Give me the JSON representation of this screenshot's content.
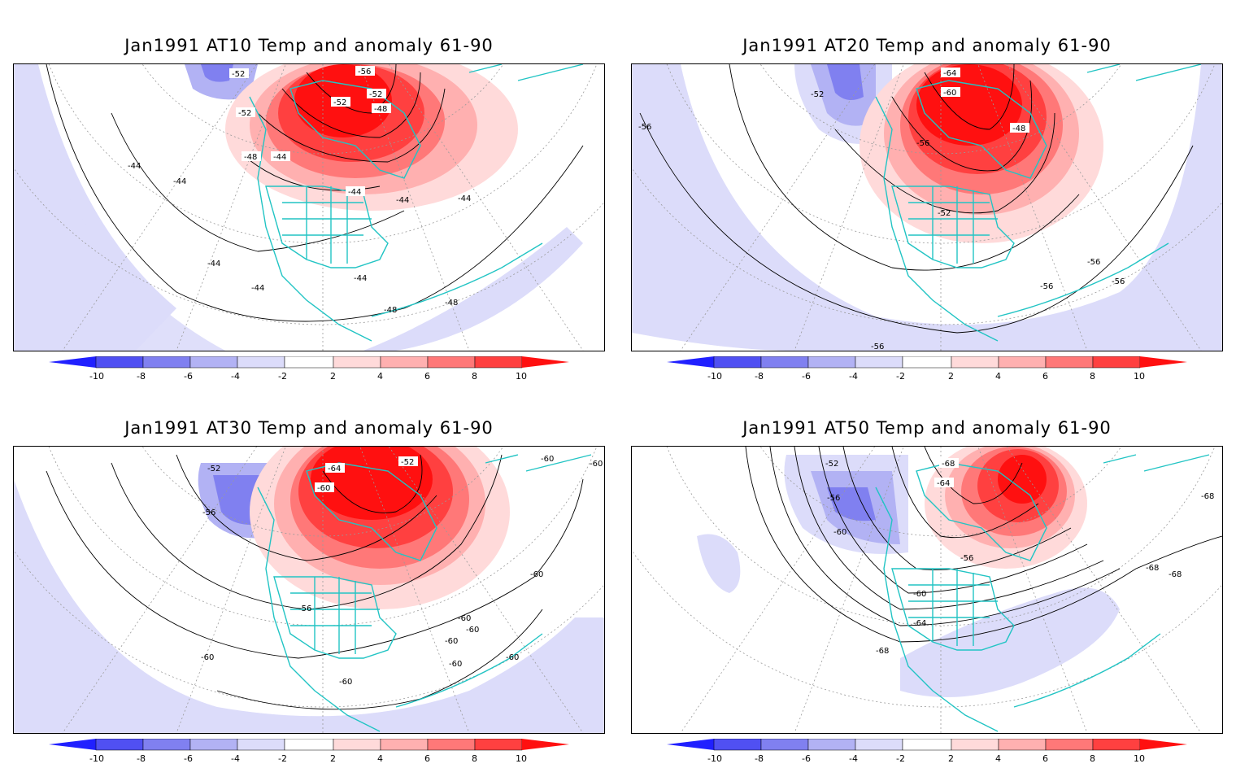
{
  "panels": [
    {
      "title": "Jan1991 AT10 Temp and anomaly 61-90",
      "contour_labels": [
        "-52",
        "-56",
        "-52",
        "-52",
        "-48",
        "-52",
        "-48",
        "-44",
        "-44",
        "-44",
        "-44",
        "-44",
        "-44",
        "-44",
        "-44",
        "-44",
        "-48",
        "-48"
      ]
    },
    {
      "title": "Jan1991 AT20 Temp and anomaly 61-90",
      "contour_labels": [
        "-52",
        "-64",
        "-60",
        "-56",
        "-48",
        "-56",
        "-52",
        "-56",
        "-56",
        "-56",
        "-56"
      ]
    },
    {
      "title": "Jan1991 AT30 Temp and anomaly 61-90",
      "contour_labels": [
        "-52",
        "-64",
        "-52",
        "-60",
        "-56",
        "-60",
        "-56",
        "-60",
        "-60",
        "-60",
        "-60",
        "-60",
        "-60",
        "-60",
        "-60",
        "-60"
      ]
    },
    {
      "title": "Jan1991 AT50 Temp and anomaly 61-90",
      "contour_labels": [
        "-52",
        "-68",
        "-64",
        "-56",
        "-60",
        "-56",
        "-60",
        "-64",
        "-68",
        "-68",
        "-68",
        "-68"
      ]
    }
  ],
  "colorbar": {
    "tick_labels": [
      "-10",
      "-8",
      "-6",
      "-4",
      "-2",
      "2",
      "4",
      "6",
      "8",
      "10"
    ],
    "colors": [
      "#2020ff",
      "#5050f2",
      "#8080f0",
      "#b2b2f4",
      "#dcdcfa",
      "#ffffff",
      "#ffdada",
      "#ffb0b0",
      "#ff7878",
      "#ff4040",
      "#ff1010"
    ]
  },
  "colors": {
    "coastline": "#22c4c4",
    "contour": "#000000",
    "grid": "#9a9a9a"
  }
}
